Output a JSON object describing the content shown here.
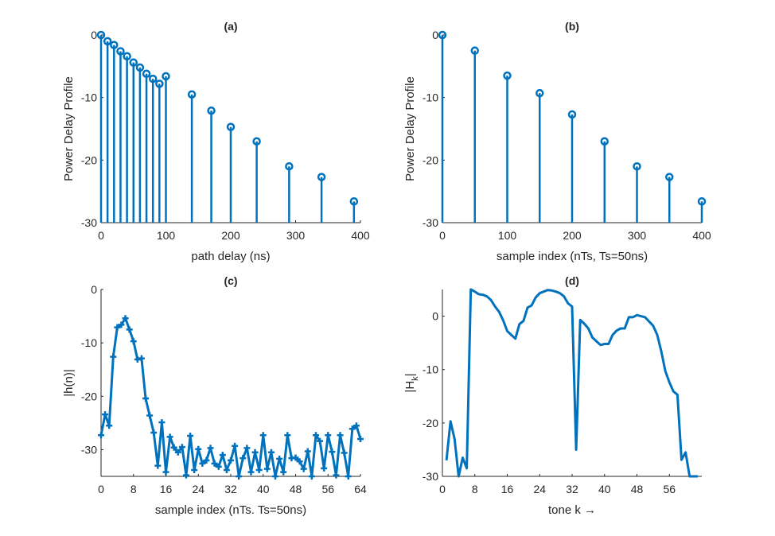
{
  "series_color": "#0072BD",
  "chart_data": [
    {
      "id": "a",
      "type": "stem",
      "title": "(a)",
      "xlabel": "path delay (ns)",
      "ylabel": "Power Delay Profile",
      "xlim": [
        0,
        400
      ],
      "ylim": [
        -30,
        0
      ],
      "xticks": [
        0,
        100,
        200,
        300,
        400
      ],
      "yticks": [
        -30,
        -20,
        -10,
        0
      ],
      "xtick_labels": [
        "0",
        "100",
        "200",
        "300",
        "400"
      ],
      "ytick_labels": [
        "-30",
        "-20",
        "-10",
        "0"
      ],
      "marker": "circle",
      "x": [
        0,
        10,
        20,
        30,
        40,
        50,
        60,
        70,
        80,
        90,
        100,
        140,
        170,
        200,
        240,
        290,
        340,
        390
      ],
      "y": [
        0,
        -1.0,
        -1.6,
        -2.6,
        -3.4,
        -4.4,
        -5.2,
        -6.2,
        -7.0,
        -7.8,
        -6.6,
        -9.5,
        -12.1,
        -14.7,
        -17.0,
        -21.0,
        -22.7,
        -26.6
      ]
    },
    {
      "id": "b",
      "type": "stem",
      "title": "(b)",
      "xlabel": "sample index (nTs, Ts=50ns)",
      "ylabel": "Power Delay Profile",
      "xlim": [
        0,
        400
      ],
      "ylim": [
        -30,
        0
      ],
      "xticks": [
        0,
        100,
        200,
        300,
        400
      ],
      "yticks": [
        -30,
        -20,
        -10,
        0
      ],
      "xtick_labels": [
        "0",
        "100",
        "200",
        "300",
        "400"
      ],
      "ytick_labels": [
        "-30",
        "-20",
        "-10",
        "0"
      ],
      "marker": "circle",
      "x": [
        0,
        50,
        100,
        150,
        200,
        250,
        300,
        350,
        400
      ],
      "y": [
        0,
        -2.5,
        -6.5,
        -9.3,
        -12.7,
        -17.0,
        -21.0,
        -22.7,
        -26.6
      ]
    },
    {
      "id": "c",
      "type": "line",
      "title": "(c)",
      "xlabel": "sample index (nTs. Ts=50ns)",
      "ylabel": "|h(n)|",
      "xlim": [
        0,
        64
      ],
      "ylim": [
        -35,
        0
      ],
      "xticks": [
        0,
        8,
        16,
        24,
        32,
        40,
        48,
        56,
        64
      ],
      "yticks": [
        -30,
        -20,
        -10,
        0
      ],
      "xtick_labels": [
        "0",
        "8",
        "16",
        "24",
        "32",
        "40",
        "48",
        "56",
        "64"
      ],
      "ytick_labels": [
        "-30",
        "-20",
        "-10",
        "0"
      ],
      "marker": "plus",
      "x": [
        0,
        1,
        2,
        3,
        4,
        5,
        6,
        7,
        8,
        9,
        10,
        11,
        12,
        13,
        14,
        15,
        16,
        17,
        18,
        19,
        20,
        21,
        22,
        23,
        24,
        25,
        26,
        27,
        28,
        29,
        30,
        31,
        32,
        33,
        34,
        35,
        36,
        37,
        38,
        39,
        40,
        41,
        42,
        43,
        44,
        45,
        46,
        47,
        48,
        49,
        50,
        51,
        52,
        53,
        54,
        55,
        56,
        57,
        58,
        59,
        60,
        61,
        62,
        63,
        64
      ],
      "y": [
        -27.3,
        -23.4,
        -25.5,
        -12.6,
        -7.1,
        -6.6,
        -5.4,
        -7.5,
        -9.7,
        -13.1,
        -12.9,
        -20.4,
        -23.6,
        -26.8,
        -33.0,
        -24.9,
        -34.2,
        -27.6,
        -29.6,
        -30.5,
        -29.5,
        -34.8,
        -27.4,
        -33.8,
        -29.9,
        -32.6,
        -32.0,
        -29.7,
        -32.6,
        -33.2,
        -31.0,
        -33.8,
        -32.0,
        -29.3,
        -35.5,
        -31.6,
        -29.7,
        -34.2,
        -30.5,
        -33.8,
        -27.3,
        -33.6,
        -30.5,
        -35.5,
        -31.7,
        -34.2,
        -27.3,
        -31.6,
        -31.5,
        -32.2,
        -33.6,
        -30.3,
        -35.2,
        -27.3,
        -28.4,
        -33.5,
        -27.3,
        -30.4,
        -34.8,
        -27.3,
        -30.6,
        -35.1,
        -26.1,
        -25.5,
        -28.0
      ]
    },
    {
      "id": "d",
      "type": "line",
      "title": "(d)",
      "xlabel": "tone k →",
      "ylabel": "|H",
      "ylabel_sub": "k",
      "ylabel_end": "|",
      "xlim": [
        0,
        64
      ],
      "ylim": [
        -30,
        5
      ],
      "xticks": [
        0,
        8,
        16,
        24,
        32,
        40,
        48,
        56
      ],
      "yticks": [
        -30,
        -20,
        -10,
        0
      ],
      "xtick_labels": [
        "0",
        "8",
        "16",
        "24",
        "32",
        "40",
        "48",
        "56"
      ],
      "ytick_labels": [
        "-30",
        "-20",
        "-10",
        "0"
      ],
      "marker": "none",
      "x": [
        1,
        2,
        3,
        4,
        5,
        6,
        7,
        8,
        9,
        10,
        11,
        12,
        13,
        14,
        15,
        16,
        17,
        18,
        19,
        20,
        21,
        22,
        23,
        24,
        25,
        26,
        27,
        28,
        29,
        30,
        31,
        32,
        33,
        34,
        35,
        36,
        37,
        38,
        39,
        40,
        41,
        42,
        43,
        44,
        45,
        46,
        47,
        48,
        49,
        50,
        51,
        52,
        53,
        54,
        55,
        56,
        57,
        58,
        59,
        60,
        61,
        62,
        63
      ],
      "y": [
        -27.0,
        -19.7,
        -23.0,
        -30.5,
        -26.5,
        -28.5,
        5.0,
        4.6,
        4.1,
        4.0,
        3.7,
        3.0,
        1.8,
        0.8,
        -0.8,
        -2.8,
        -3.5,
        -4.2,
        -1.5,
        -0.9,
        1.6,
        2.0,
        3.5,
        4.3,
        4.6,
        4.9,
        4.8,
        4.6,
        4.3,
        3.7,
        2.4,
        1.8,
        -25.0,
        -0.7,
        -1.4,
        -2.3,
        -4.0,
        -4.7,
        -5.4,
        -5.2,
        -5.2,
        -3.5,
        -2.7,
        -2.3,
        -2.3,
        -0.2,
        -0.2,
        0.2,
        0.0,
        -0.2,
        -1.0,
        -1.8,
        -3.5,
        -6.6,
        -10.3,
        -12.4,
        -14.1,
        -14.7,
        -26.9,
        -25.5,
        -30.0,
        -30.0,
        -30.3
      ]
    }
  ]
}
